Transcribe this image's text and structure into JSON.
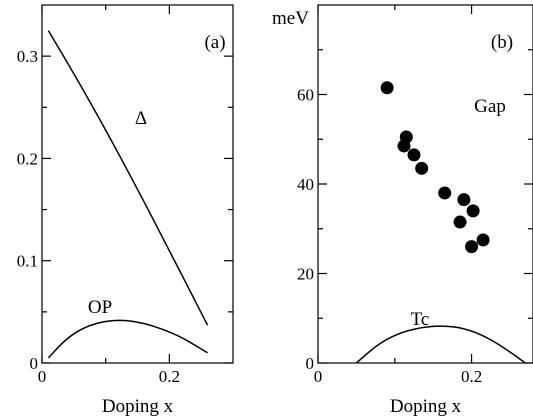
{
  "chart_data": [
    {
      "type": "line",
      "panel_label": "(a)",
      "xlabel": "Doping x",
      "ylabel": "",
      "xlim": [
        0,
        0.3
      ],
      "ylim": [
        0,
        0.35
      ],
      "x_ticks": [
        "0",
        "0.2"
      ],
      "y_ticks": [
        "0",
        "0.1",
        "0.2",
        "0.3"
      ],
      "x_tick_values": [
        0,
        0.2
      ],
      "y_tick_values": [
        0,
        0.1,
        0.2,
        0.3
      ],
      "x_minor_tick_values": [
        0.1
      ],
      "y_minor_tick_values": [
        0.05,
        0.15,
        0.25
      ],
      "series": [
        {
          "name": "Δ",
          "x": [
            0.01,
            0.05,
            0.1,
            0.15,
            0.2,
            0.26
          ],
          "y": [
            0.325,
            0.283,
            0.228,
            0.17,
            0.11,
            0.037
          ]
        },
        {
          "name": "OP",
          "x": [
            0.01,
            0.04,
            0.07,
            0.1,
            0.13,
            0.16,
            0.19,
            0.22,
            0.26
          ],
          "y": [
            0.005,
            0.025,
            0.036,
            0.041,
            0.042,
            0.039,
            0.033,
            0.025,
            0.01
          ]
        }
      ]
    },
    {
      "type": "scatter",
      "panel_label": "(b)",
      "xlabel": "Doping x",
      "ylabel": "meV",
      "xlim": [
        0,
        0.28
      ],
      "ylim": [
        0,
        80
      ],
      "x_ticks": [
        "0",
        "0.2"
      ],
      "y_ticks": [
        "0",
        "20",
        "40",
        "60"
      ],
      "x_tick_values": [
        0,
        0.2
      ],
      "y_tick_values": [
        0,
        20,
        40,
        60
      ],
      "x_minor_tick_values": [
        0.1
      ],
      "y_minor_tick_values": [
        10,
        30,
        50,
        70
      ],
      "series": [
        {
          "name": "Gap",
          "x": [
            0.09,
            0.115,
            0.112,
            0.125,
            0.135,
            0.165,
            0.185,
            0.19,
            0.202,
            0.2,
            0.215
          ],
          "y": [
            61.5,
            50.5,
            48.5,
            46.5,
            43.5,
            38.0,
            31.5,
            36.5,
            34.0,
            26.0,
            27.5
          ]
        },
        {
          "name": "Tc",
          "x": [
            0.05,
            0.08,
            0.11,
            0.14,
            0.165,
            0.19,
            0.22,
            0.25,
            0.27
          ],
          "y": [
            0,
            4.5,
            7.0,
            8.1,
            8.3,
            7.8,
            5.8,
            2.5,
            0
          ]
        }
      ]
    }
  ]
}
